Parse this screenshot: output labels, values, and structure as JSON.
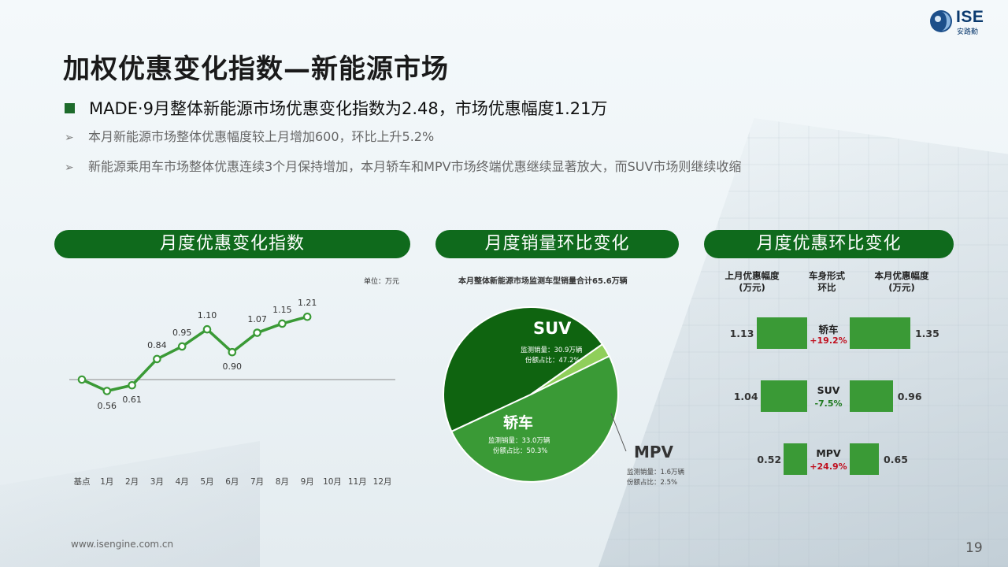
{
  "logo": {
    "text": "ISE",
    "subtext": "安路勤"
  },
  "title": "加权优惠变化指数—新能源市场",
  "bullets": {
    "main": "MADE·9月整体新能源市场优惠变化指数为2.48，市场优惠幅度1.21万",
    "sub": [
      "本月新能源市场整体优惠幅度较上月增加600，环比上升5.2%",
      "新能源乘用车市场整体优惠连续3个月保持增加，本月轿车和MPV市场终端优惠继续显著放大，而SUV市场则继续收缩"
    ]
  },
  "panels": {
    "left_title": "月度优惠变化指数",
    "mid_title": "月度销量环比变化",
    "right_title": "月度优惠环比变化"
  },
  "line_chart": {
    "unit": "单位：万元",
    "chart_data": {
      "type": "line",
      "categories": [
        "基点",
        "1月",
        "2月",
        "3月",
        "4月",
        "5月",
        "6月",
        "7月",
        "8月",
        "9月",
        "10月",
        "11月",
        "12月"
      ],
      "values": [
        0.66,
        0.56,
        0.61,
        0.84,
        0.95,
        1.1,
        0.9,
        1.07,
        1.15,
        1.21,
        null,
        null,
        null
      ],
      "labels": [
        "",
        "0.56",
        "0.61",
        "0.84",
        "0.95",
        "1.10",
        "0.90",
        "1.07",
        "1.15",
        "1.21",
        "",
        "",
        ""
      ],
      "baseline": 0.66,
      "color": "#3a9a36"
    }
  },
  "pie_chart": {
    "caption": "本月整体新能源市场监测车型销量合计65.6万辆",
    "chart_data": {
      "type": "pie",
      "slices": [
        {
          "name": "SUV",
          "value": 47.2,
          "sales": "监测销量：30.9万辆",
          "share": "份额占比：47.2%",
          "color": "#0f6410"
        },
        {
          "name": "MPV",
          "value": 2.5,
          "sales": "监测销量：1.6万辆",
          "share": "份额占比：2.5%",
          "color": "#8fcf5a"
        },
        {
          "name": "轿车",
          "value": 50.3,
          "sales": "监测销量：33.0万辆",
          "share": "份额占比：50.3%",
          "color": "#3a9a36"
        }
      ]
    }
  },
  "discount_compare": {
    "headers": {
      "left": [
        "上月优惠幅度",
        "(万元)"
      ],
      "mid": [
        "车身形式",
        "环比"
      ],
      "right": [
        "本月优惠幅度",
        "(万元)"
      ]
    },
    "chart_data": {
      "type": "bar",
      "categories": [
        "轿车",
        "SUV",
        "MPV"
      ],
      "series": [
        {
          "name": "上月优惠幅度",
          "values": [
            1.13,
            1.04,
            0.52
          ]
        },
        {
          "name": "本月优惠幅度",
          "values": [
            1.35,
            0.96,
            0.65
          ]
        }
      ],
      "changes": [
        "+19.2%",
        "-7.5%",
        "+24.9%"
      ],
      "change_colors": [
        "#c0101e",
        "#1f7a1f",
        "#c0101e"
      ],
      "bar_color": "#3a9a36"
    },
    "left_labels": [
      "1.13",
      "1.04",
      "0.52"
    ],
    "right_labels": [
      "1.35",
      "0.96",
      "0.65"
    ]
  },
  "footer": {
    "url": "www.isengine.com.cn",
    "page": "19"
  }
}
